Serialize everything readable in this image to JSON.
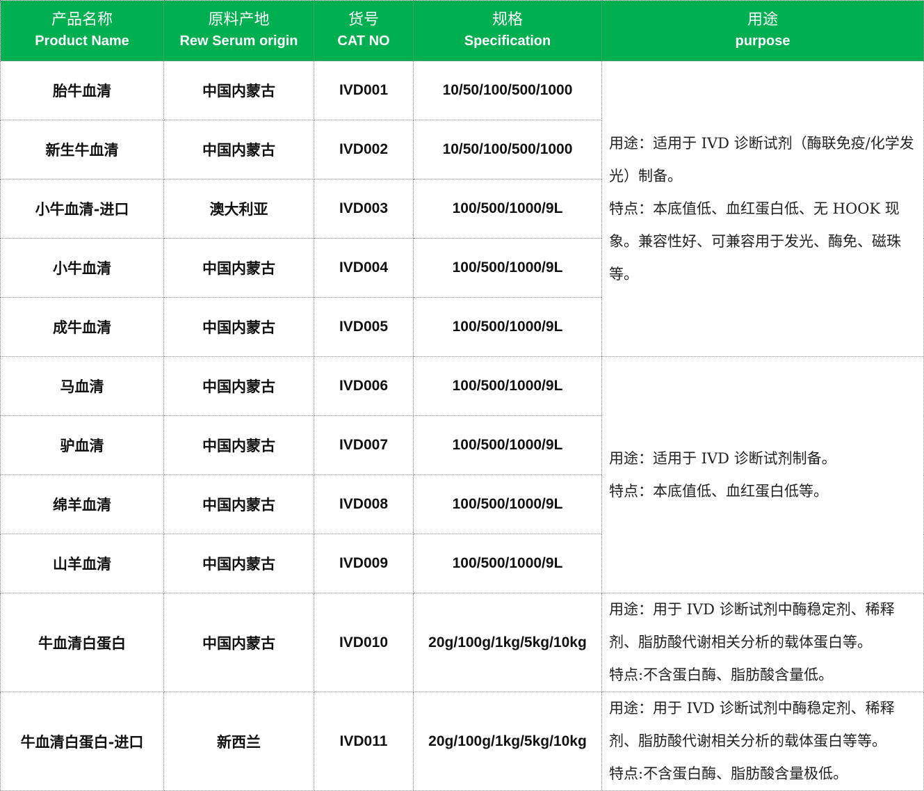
{
  "colors": {
    "header_bg": "#00AF50",
    "header_text": "#FFFFFF"
  },
  "headers": [
    {
      "cn": "产品名称",
      "en": "Product Name"
    },
    {
      "cn": "原料产地",
      "en": "Rew Serum origin"
    },
    {
      "cn": "货号",
      "en": "CAT NO"
    },
    {
      "cn": "规格",
      "en": "Specification"
    },
    {
      "cn": "用途",
      "en": "purpose"
    }
  ],
  "rows": [
    {
      "name": "胎牛血清",
      "origin": "中国内蒙古",
      "cat": "IVD001",
      "spec": "10/50/100/500/1000"
    },
    {
      "name": "新生牛血清",
      "origin": "中国内蒙古",
      "cat": "IVD002",
      "spec": "10/50/100/500/1000"
    },
    {
      "name": "小牛血清-进口",
      "origin": "澳大利亚",
      "cat": "IVD003",
      "spec": "100/500/1000/9L"
    },
    {
      "name": "小牛血清",
      "origin": "中国内蒙古",
      "cat": "IVD004",
      "spec": "100/500/1000/9L"
    },
    {
      "name": "成牛血清",
      "origin": "中国内蒙古",
      "cat": "IVD005",
      "spec": "100/500/1000/9L"
    },
    {
      "name": "马血清",
      "origin": "中国内蒙古",
      "cat": "IVD006",
      "spec": "100/500/1000/9L"
    },
    {
      "name": "驴血清",
      "origin": "中国内蒙古",
      "cat": "IVD007",
      "spec": "100/500/1000/9L"
    },
    {
      "name": "绵羊血清",
      "origin": "中国内蒙古",
      "cat": "IVD008",
      "spec": "100/500/1000/9L"
    },
    {
      "name": "山羊血清",
      "origin": "中国内蒙古",
      "cat": "IVD009",
      "spec": "100/500/1000/9L"
    },
    {
      "name": "牛血清白蛋白",
      "origin": "中国内蒙古",
      "cat": "IVD010",
      "spec": "20g/100g/1kg/5kg/10kg"
    },
    {
      "name": "牛血清白蛋白-进口",
      "origin": "新西兰",
      "cat": "IVD011",
      "spec": "20g/100g/1kg/5kg/10kg"
    }
  ],
  "purposes": [
    {
      "use": "用途：适用于 IVD 诊断试剂（酶联免疫/化学发光）制备。",
      "feature": "特点：本底值低、血红蛋白低、无 HOOK 现象。兼容性好、可兼容用于发光、酶免、磁珠等。"
    },
    {
      "use": "用途：适用于 IVD 诊断试剂制备。",
      "feature": "特点：本底值低、血红蛋白低等。"
    },
    {
      "use": "用途：用于 IVD 诊断试剂中酶稳定剂、稀释剂、脂肪酸代谢相关分析的载体蛋白等。",
      "feature": "特点:不含蛋白酶、脂肪酸含量低。"
    },
    {
      "use": "用途：用于 IVD 诊断试剂中酶稳定剂、稀释剂、脂肪酸代谢相关分析的载体蛋白等等。",
      "feature": "特点:不含蛋白酶、脂肪酸含量极低。"
    }
  ]
}
